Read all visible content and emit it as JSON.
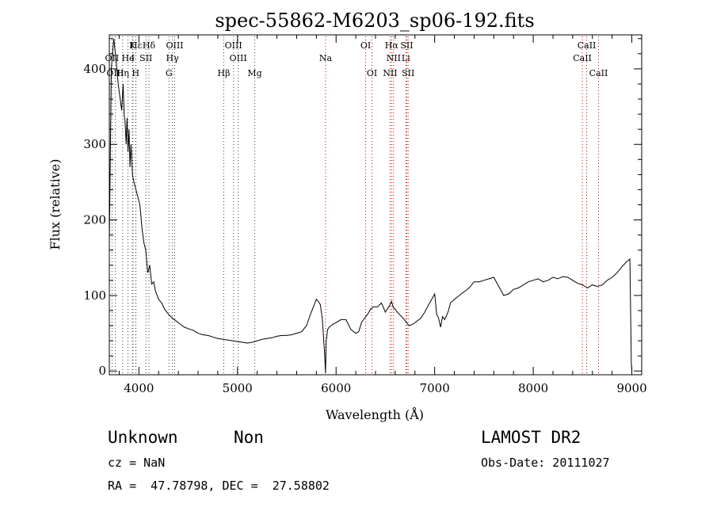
{
  "chart_data": {
    "type": "line",
    "title": "spec-55862-M6203_sp06-192.fits",
    "xlabel": "Wavelength (Å)",
    "ylabel": "Flux (relative)",
    "xlim": [
      3700,
      9100
    ],
    "ylim": [
      -5,
      445
    ],
    "xticks": [
      4000,
      5000,
      6000,
      7000,
      8000,
      9000
    ],
    "yticks": [
      0,
      100,
      200,
      300,
      400
    ],
    "grid": false,
    "series": [
      {
        "x": [
          3700,
          3720,
          3745,
          3770,
          3790,
          3810,
          3825,
          3840,
          3850,
          3860,
          3870,
          3880,
          3890,
          3900,
          3910,
          3920,
          3935,
          3950,
          3970,
          3990,
          4010,
          4030,
          4050,
          4070,
          4090,
          4110,
          4130,
          4150,
          4170,
          4200,
          4230,
          4260,
          4300,
          4340,
          4380,
          4420,
          4460,
          4500,
          4550,
          4600,
          4650,
          4700,
          4750,
          4800,
          4850,
          4900,
          4950,
          5000,
          5050,
          5100,
          5150,
          5200,
          5250,
          5300,
          5350,
          5400,
          5450,
          5500,
          5550,
          5600,
          5650,
          5700,
          5740,
          5780,
          5800,
          5820,
          5840,
          5860,
          5875,
          5885,
          5893,
          5900,
          5915,
          5930,
          5950,
          5970,
          6000,
          6050,
          6100,
          6150,
          6200,
          6230,
          6260,
          6290,
          6320,
          6350,
          6380,
          6420,
          6460,
          6500,
          6540,
          6563,
          6580,
          6600,
          6620,
          6650,
          6680,
          6710,
          6740,
          6780,
          6820,
          6860,
          6900,
          6940,
          6970,
          7000,
          7020,
          7040,
          7060,
          7080,
          7100,
          7120,
          7140,
          7160,
          7200,
          7250,
          7300,
          7350,
          7400,
          7450,
          7500,
          7550,
          7600,
          7650,
          7700,
          7750,
          7800,
          7850,
          7900,
          7950,
          8000,
          8050,
          8100,
          8150,
          8200,
          8250,
          8300,
          8350,
          8400,
          8450,
          8500,
          8550,
          8600,
          8650,
          8700,
          8750,
          8800,
          8850,
          8900,
          8950,
          8980,
          8995,
          9000
        ],
        "y": [
          170,
          400,
          440,
          410,
          380,
          360,
          345,
          380,
          340,
          330,
          300,
          335,
          290,
          320,
          270,
          300,
          260,
          250,
          240,
          230,
          220,
          190,
          170,
          160,
          130,
          140,
          115,
          118,
          105,
          95,
          90,
          82,
          75,
          70,
          66,
          62,
          58,
          56,
          54,
          50,
          48,
          47,
          45,
          43,
          42,
          41,
          40,
          39,
          38,
          37,
          38,
          40,
          42,
          43,
          44,
          46,
          47,
          47,
          48,
          50,
          52,
          60,
          75,
          88,
          95,
          92,
          88,
          70,
          40,
          20,
          -3,
          40,
          55,
          58,
          60,
          62,
          64,
          68,
          68,
          55,
          50,
          52,
          65,
          70,
          75,
          82,
          85,
          85,
          90,
          78,
          86,
          92,
          84,
          82,
          78,
          74,
          70,
          65,
          60,
          62,
          66,
          70,
          78,
          88,
          95,
          102,
          75,
          70,
          58,
          72,
          68,
          73,
          80,
          90,
          95,
          100,
          105,
          110,
          118,
          118,
          120,
          122,
          124,
          112,
          100,
          102,
          108,
          110,
          114,
          118,
          120,
          122,
          118,
          120,
          124,
          122,
          125,
          124,
          120,
          116,
          114,
          110,
          114,
          112,
          114,
          120,
          124,
          130,
          138,
          145,
          148,
          10,
          0
        ]
      }
    ],
    "lines": [
      {
        "name": "Hε",
        "wavelength": 3970,
        "row": 0,
        "color": "#444444"
      },
      {
        "name": "K",
        "wavelength": 3934,
        "row": 0,
        "color": "#444444"
      },
      {
        "name": "Hδ",
        "wavelength": 4102,
        "row": 0,
        "color": "#444444"
      },
      {
        "name": "OIII",
        "wavelength": 4363,
        "row": 0,
        "color": "#444444"
      },
      {
        "name": "OIII",
        "wavelength": 4959,
        "row": 0,
        "color": "#444444"
      },
      {
        "name": "OI",
        "wavelength": 6300,
        "row": 0,
        "color": "#cc0000"
      },
      {
        "name": "Hα",
        "wavelength": 6563,
        "row": 0,
        "color": "#cc0000"
      },
      {
        "name": "SII",
        "wavelength": 6717,
        "row": 0,
        "color": "#cc0000"
      },
      {
        "name": "CaII",
        "wavelength": 8542,
        "row": 0,
        "color": "#cc0000"
      },
      {
        "name": "OII",
        "wavelength": 3727,
        "row": 1,
        "color": "#444444"
      },
      {
        "name": "He",
        "wavelength": 3889,
        "row": 1,
        "color": "#444444"
      },
      {
        "name": "I",
        "wavelength": 3940,
        "row": 1,
        "color": "#444444"
      },
      {
        "name": "SII",
        "wavelength": 4072,
        "row": 1,
        "color": "#444444"
      },
      {
        "name": "Hγ",
        "wavelength": 4340,
        "row": 1,
        "color": "#444444"
      },
      {
        "name": "OIII",
        "wavelength": 5007,
        "row": 1,
        "color": "#444444"
      },
      {
        "name": "Na",
        "wavelength": 5893,
        "row": 1,
        "color": "#cc0000"
      },
      {
        "name": "NII",
        "wavelength": 6583,
        "row": 1,
        "color": "#cc0000"
      },
      {
        "name": "Li",
        "wavelength": 6708,
        "row": 1,
        "color": "#cc0000"
      },
      {
        "name": "CaII",
        "wavelength": 8498,
        "row": 1,
        "color": "#cc0000"
      },
      {
        "name": "OIII",
        "wavelength": 3760,
        "row": 2,
        "color": "#444444"
      },
      {
        "name": "Hη",
        "wavelength": 3835,
        "row": 2,
        "color": "#444444"
      },
      {
        "name": "H",
        "wavelength": 3968,
        "row": 2,
        "color": "#444444"
      },
      {
        "name": "G",
        "wavelength": 4305,
        "row": 2,
        "color": "#444444"
      },
      {
        "name": "Hβ",
        "wavelength": 4861,
        "row": 2,
        "color": "#444444"
      },
      {
        "name": "Mg",
        "wavelength": 5175,
        "row": 2,
        "color": "#444444"
      },
      {
        "name": "OI",
        "wavelength": 6364,
        "row": 2,
        "color": "#cc0000"
      },
      {
        "name": "NII",
        "wavelength": 6548,
        "row": 2,
        "color": "#cc0000"
      },
      {
        "name": "SII",
        "wavelength": 6731,
        "row": 2,
        "color": "#cc0000"
      },
      {
        "name": "CaII",
        "wavelength": 8662,
        "row": 2,
        "color": "#cc0000"
      }
    ]
  },
  "info": {
    "class": "Unknown",
    "subclass": "Non",
    "survey": "LAMOST DR2",
    "cz": "cz = NaN",
    "obs_date": "Obs-Date: 20111027",
    "radec": "RA =  47.78798, DEC =  27.58802"
  }
}
